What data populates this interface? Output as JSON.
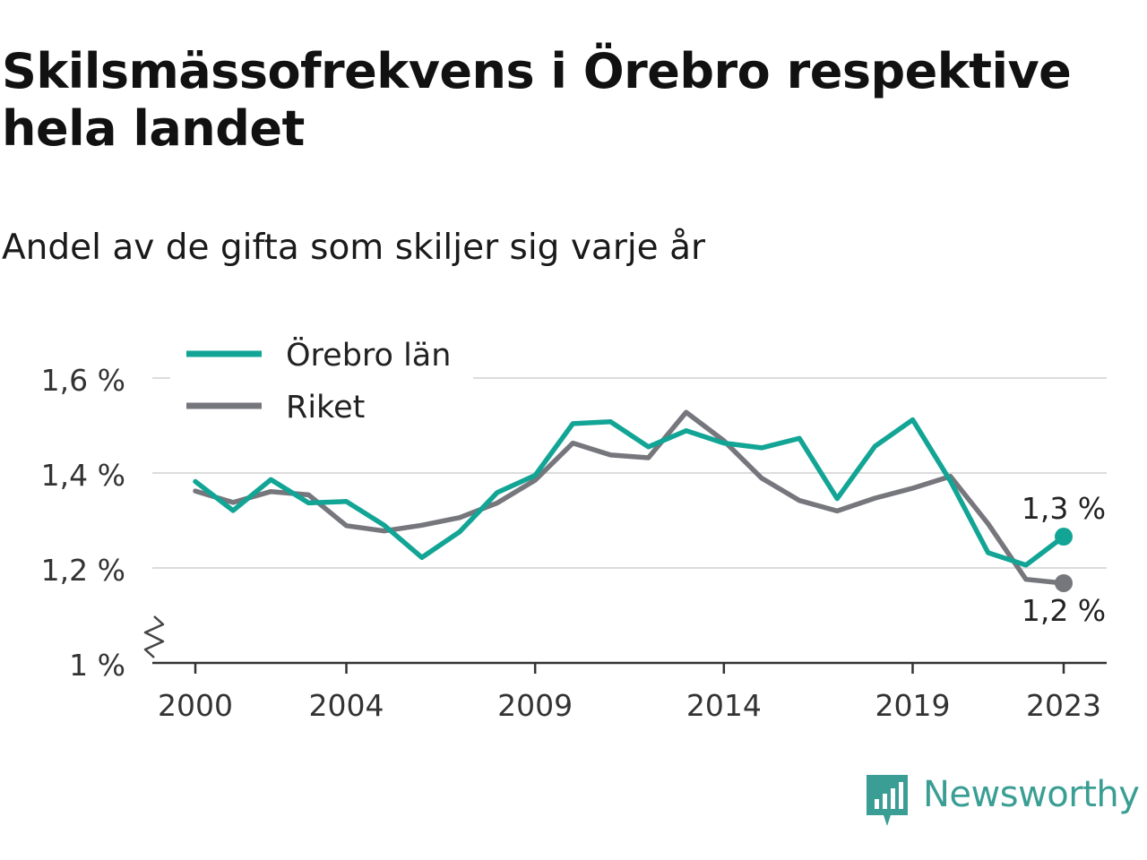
{
  "title": "Skilsmässofrekvens i Örebro respektive hela landet",
  "subtitle": "Andel av de gifta som skiljer sig varje år",
  "brand": {
    "name": "Newsworthy",
    "icon": "newsworthy-logo-icon",
    "color": "#3a9e94"
  },
  "chart_data": {
    "type": "line",
    "x": [
      2000,
      2001,
      2002,
      2003,
      2004,
      2005,
      2006,
      2007,
      2008,
      2009,
      2010,
      2011,
      2012,
      2013,
      2014,
      2015,
      2016,
      2017,
      2018,
      2019,
      2020,
      2021,
      2022,
      2023
    ],
    "x_ticks": [
      2000,
      2004,
      2009,
      2014,
      2019,
      2023
    ],
    "y_ticks": [
      1.0,
      1.2,
      1.4,
      1.6
    ],
    "y_tick_labels": [
      "1 %",
      "1,2 %",
      "1,4 %",
      "1,6 %"
    ],
    "ylim": [
      1.0,
      1.64
    ],
    "y_axis_break": true,
    "grid": true,
    "legend": "top-left",
    "series": [
      {
        "name": "Örebro län",
        "color": "#12a595",
        "values": [
          1.382,
          1.321,
          1.386,
          1.337,
          1.34,
          1.29,
          1.222,
          1.276,
          1.359,
          1.395,
          1.504,
          1.508,
          1.455,
          1.489,
          1.463,
          1.453,
          1.473,
          1.346,
          1.456,
          1.512,
          1.383,
          1.232,
          1.206,
          1.266
        ],
        "end_label": "1,3 %"
      },
      {
        "name": "Riket",
        "color": "#76767d",
        "values": [
          1.362,
          1.338,
          1.361,
          1.354,
          1.289,
          1.278,
          1.29,
          1.306,
          1.337,
          1.385,
          1.463,
          1.438,
          1.432,
          1.528,
          1.468,
          1.389,
          1.342,
          1.32,
          1.347,
          1.368,
          1.393,
          1.293,
          1.176,
          1.168
        ],
        "end_label": "1,2 %"
      }
    ]
  }
}
